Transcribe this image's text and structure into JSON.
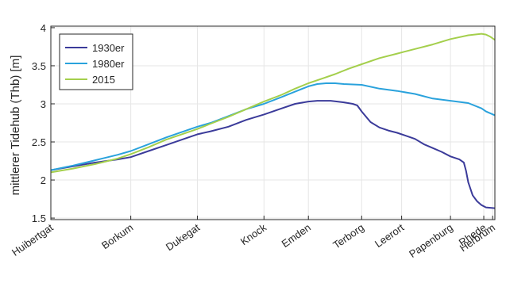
{
  "chart_data": {
    "type": "line",
    "title": "",
    "xlabel": "",
    "ylabel": "mittlerer Tidehub (Thb) [m]",
    "ylim": [
      1.48,
      4.02
    ],
    "yticks": [
      1.5,
      2,
      2.5,
      3,
      3.5,
      4
    ],
    "ytick_labels": [
      "1.5",
      "2",
      "2.5",
      "3",
      "3.5",
      "4"
    ],
    "xlim": [
      0,
      100
    ],
    "grid": true,
    "legend_position": "top-left",
    "stations": [
      {
        "label": "Huibertgat",
        "x": 0
      },
      {
        "label": "Borkum",
        "x": 18
      },
      {
        "label": "Dukegat",
        "x": 33
      },
      {
        "label": "Knock",
        "x": 48
      },
      {
        "label": "Emden",
        "x": 58
      },
      {
        "label": "Terborg",
        "x": 70
      },
      {
        "label": "Leerort",
        "x": 79
      },
      {
        "label": "Papenburg",
        "x": 90
      },
      {
        "label": "Rhede",
        "x": 97.5
      },
      {
        "label": "Herbrum",
        "x": 99.5
      }
    ],
    "series": [
      {
        "name": "1930er",
        "color": "#3b3b9a",
        "x": [
          0,
          5,
          10,
          15,
          18,
          22,
          26,
          30,
          33,
          36,
          40,
          44,
          48,
          52,
          55,
          58,
          60,
          63,
          66,
          68,
          69,
          70,
          72,
          74,
          76,
          78,
          80,
          82,
          84,
          86,
          88,
          90,
          92,
          93,
          93.5,
          94,
          95,
          96,
          97,
          98,
          100
        ],
        "values": [
          2.13,
          2.18,
          2.23,
          2.27,
          2.3,
          2.38,
          2.46,
          2.54,
          2.6,
          2.64,
          2.7,
          2.79,
          2.86,
          2.94,
          3.0,
          3.03,
          3.04,
          3.04,
          3.02,
          3.0,
          2.98,
          2.9,
          2.76,
          2.69,
          2.65,
          2.62,
          2.58,
          2.54,
          2.47,
          2.42,
          2.37,
          2.31,
          2.27,
          2.23,
          2.12,
          1.97,
          1.8,
          1.72,
          1.67,
          1.64,
          1.63
        ]
      },
      {
        "name": "1980er",
        "color": "#2aa2dc",
        "x": [
          0,
          5,
          10,
          15,
          18,
          22,
          26,
          30,
          33,
          36,
          40,
          44,
          48,
          52,
          55,
          58,
          60,
          62,
          64,
          66,
          70,
          74,
          78,
          82,
          86,
          90,
          94,
          97,
          98,
          100
        ],
        "values": [
          2.13,
          2.19,
          2.26,
          2.33,
          2.38,
          2.47,
          2.56,
          2.64,
          2.7,
          2.75,
          2.84,
          2.93,
          3.0,
          3.09,
          3.16,
          3.23,
          3.26,
          3.27,
          3.27,
          3.26,
          3.25,
          3.2,
          3.17,
          3.13,
          3.07,
          3.04,
          3.01,
          2.94,
          2.9,
          2.85
        ]
      },
      {
        "name": "2015",
        "color": "#a4cf4c",
        "x": [
          0,
          5,
          10,
          15,
          18,
          22,
          26,
          30,
          33,
          36,
          40,
          44,
          48,
          52,
          55,
          58,
          61,
          64,
          67,
          70,
          74,
          78,
          82,
          86,
          90,
          94,
          97,
          98,
          99,
          100
        ],
        "values": [
          2.1,
          2.15,
          2.21,
          2.28,
          2.34,
          2.43,
          2.53,
          2.61,
          2.67,
          2.74,
          2.83,
          2.93,
          3.03,
          3.12,
          3.2,
          3.27,
          3.33,
          3.39,
          3.46,
          3.52,
          3.6,
          3.66,
          3.72,
          3.78,
          3.85,
          3.9,
          3.92,
          3.91,
          3.88,
          3.84
        ]
      }
    ]
  }
}
